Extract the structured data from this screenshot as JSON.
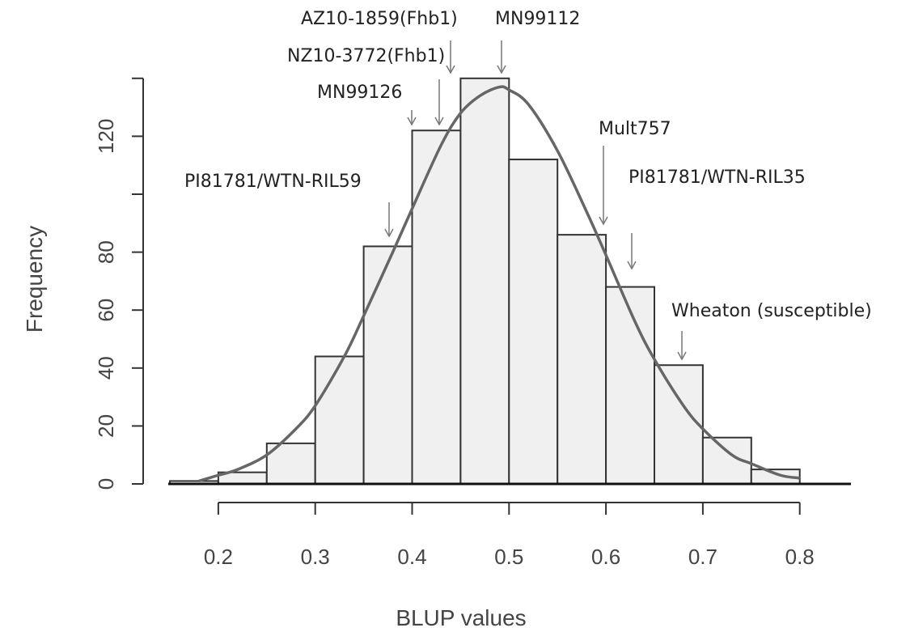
{
  "chart_data": {
    "type": "bar",
    "subtype": "histogram",
    "title": "",
    "xlabel": "BLUP values",
    "ylabel": "Frequency",
    "bin_edges": [
      0.15,
      0.2,
      0.25,
      0.3,
      0.35,
      0.4,
      0.45,
      0.5,
      0.55,
      0.6,
      0.65,
      0.7,
      0.75,
      0.8
    ],
    "values": [
      1,
      4,
      14,
      44,
      82,
      122,
      140,
      112,
      86,
      68,
      41,
      16,
      5
    ],
    "xlim": [
      0.15,
      0.85
    ],
    "ylim": [
      0,
      140
    ],
    "x_ticks": [
      0.2,
      0.3,
      0.4,
      0.5,
      0.6,
      0.7,
      0.8
    ],
    "x_tick_labels": [
      "0.2",
      "0.3",
      "0.4",
      "0.5",
      "0.6",
      "0.7",
      "0.8"
    ],
    "y_ticks": [
      0,
      20,
      40,
      60,
      80,
      120
    ],
    "y_tick_labels": [
      "0",
      "20",
      "40",
      "60",
      "80",
      "120"
    ],
    "density_curve": {
      "x": [
        0.18,
        0.2,
        0.22,
        0.25,
        0.28,
        0.3,
        0.33,
        0.35,
        0.38,
        0.4,
        0.43,
        0.45,
        0.47,
        0.49,
        0.5,
        0.52,
        0.55,
        0.58,
        0.6,
        0.63,
        0.65,
        0.68,
        0.7,
        0.73,
        0.75,
        0.78,
        0.8
      ],
      "y": [
        1,
        3,
        5,
        10,
        19,
        27,
        44,
        58,
        80,
        95,
        117,
        128,
        134,
        137,
        136,
        131,
        115,
        94,
        79,
        56,
        43,
        27,
        19,
        10,
        7,
        3,
        2
      ]
    },
    "grid": false,
    "legend": "none",
    "colors": {
      "bar_fill": "#f0f0f0",
      "bar_edge": "#333333",
      "curve": "#666666"
    },
    "annotations": [
      {
        "label": "AZ10-1859(Fhb1)",
        "x": 0.46,
        "y": 140
      },
      {
        "label": "MN99112",
        "x": 0.49,
        "y": 140
      },
      {
        "label": "NZ10-3772(Fhb1)",
        "x": 0.43,
        "y": 124
      },
      {
        "label": "MN99126",
        "x": 0.4,
        "y": 124
      },
      {
        "label": "Mult757",
        "x": 0.6,
        "y": 90
      },
      {
        "label": "PI81781/WTN-RIL59",
        "x": 0.38,
        "y": 85
      },
      {
        "label": "PI81781/WTN-RIL35",
        "x": 0.63,
        "y": 74
      },
      {
        "label": "Wheaton (susceptible)",
        "x": 0.68,
        "y": 43
      }
    ]
  }
}
